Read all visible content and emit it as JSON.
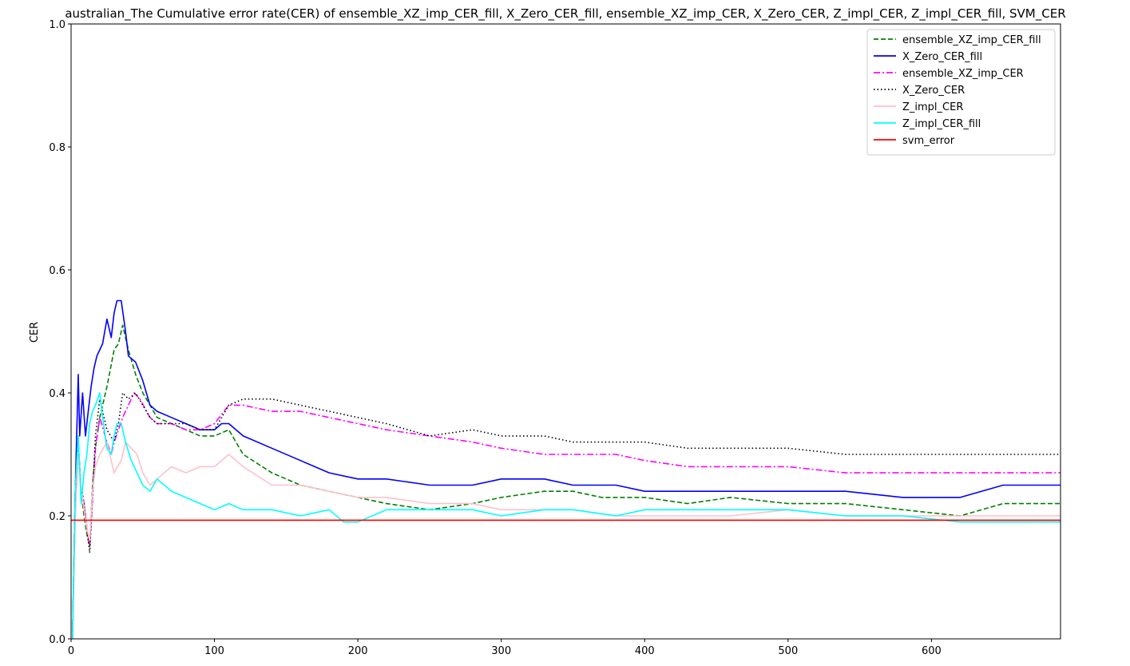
{
  "chart_data": {
    "type": "line",
    "title": "australian_The Cumulative error rate(CER) of ensemble_XZ_imp_CER_fill, X_Zero_CER_fill, ensemble_XZ_imp_CER, X_Zero_CER, Z_impl_CER, Z_impl_CER_fill, SVM_CER",
    "xlabel": "",
    "ylabel": "CER",
    "xlim": [
      0,
      690
    ],
    "ylim": [
      0,
      1.0
    ],
    "xticks": [
      0,
      100,
      200,
      300,
      400,
      500,
      600
    ],
    "yticks": [
      0.0,
      0.2,
      0.4,
      0.6,
      0.8,
      1.0
    ],
    "ytick_labels": [
      "0.0",
      "0.2",
      "0.4",
      "0.6",
      "0.8",
      "1.0"
    ],
    "grid": false,
    "legend_position": "top-right",
    "series": [
      {
        "name": "ensemble_XZ_imp_CER_fill",
        "color": "#008000",
        "dash": "dashed",
        "x": [
          1,
          3,
          5,
          7,
          9,
          11,
          13,
          15,
          17,
          20,
          25,
          30,
          33,
          36,
          40,
          45,
          50,
          55,
          60,
          70,
          80,
          90,
          100,
          110,
          120,
          140,
          160,
          180,
          200,
          220,
          250,
          280,
          300,
          330,
          350,
          370,
          400,
          430,
          460,
          500,
          540,
          580,
          620,
          650,
          690
        ],
        "y": [
          0.0,
          0.25,
          0.32,
          0.24,
          0.2,
          0.17,
          0.15,
          0.25,
          0.31,
          0.36,
          0.41,
          0.47,
          0.48,
          0.51,
          0.47,
          0.43,
          0.4,
          0.38,
          0.36,
          0.35,
          0.34,
          0.33,
          0.33,
          0.34,
          0.3,
          0.27,
          0.25,
          0.24,
          0.23,
          0.22,
          0.21,
          0.22,
          0.23,
          0.24,
          0.24,
          0.23,
          0.23,
          0.22,
          0.23,
          0.22,
          0.22,
          0.21,
          0.2,
          0.22,
          0.22
        ]
      },
      {
        "name": "X_Zero_CER_fill",
        "color": "#0000ff",
        "dash": "solid",
        "x": [
          1,
          3,
          5,
          6,
          8,
          10,
          12,
          14,
          16,
          18,
          20,
          22,
          25,
          28,
          30,
          32,
          35,
          38,
          40,
          45,
          50,
          55,
          60,
          70,
          80,
          90,
          100,
          105,
          110,
          120,
          140,
          160,
          180,
          200,
          220,
          250,
          280,
          300,
          330,
          350,
          380,
          400,
          430,
          460,
          500,
          540,
          580,
          620,
          650,
          690
        ],
        "y": [
          0.0,
          0.25,
          0.43,
          0.33,
          0.4,
          0.33,
          0.37,
          0.41,
          0.44,
          0.46,
          0.47,
          0.48,
          0.52,
          0.49,
          0.53,
          0.55,
          0.55,
          0.5,
          0.46,
          0.45,
          0.42,
          0.38,
          0.37,
          0.36,
          0.35,
          0.34,
          0.34,
          0.35,
          0.35,
          0.33,
          0.31,
          0.29,
          0.27,
          0.26,
          0.26,
          0.25,
          0.25,
          0.26,
          0.26,
          0.25,
          0.25,
          0.24,
          0.24,
          0.24,
          0.24,
          0.24,
          0.23,
          0.23,
          0.25,
          0.25
        ]
      },
      {
        "name": "ensemble_XZ_imp_CER",
        "color": "#ff00ff",
        "dash": "dashdot",
        "x": [
          1,
          3,
          5,
          7,
          9,
          11,
          13,
          15,
          17,
          20,
          25,
          28,
          30,
          33,
          36,
          40,
          44,
          48,
          55,
          60,
          70,
          80,
          90,
          100,
          110,
          120,
          140,
          160,
          180,
          200,
          220,
          250,
          280,
          300,
          330,
          350,
          380,
          400,
          430,
          460,
          500,
          540,
          580,
          620,
          650,
          690
        ],
        "y": [
          0.0,
          0.25,
          0.3,
          0.25,
          0.22,
          0.18,
          0.15,
          0.23,
          0.31,
          0.36,
          0.32,
          0.3,
          0.32,
          0.34,
          0.36,
          0.38,
          0.4,
          0.39,
          0.36,
          0.35,
          0.35,
          0.34,
          0.34,
          0.35,
          0.38,
          0.38,
          0.37,
          0.37,
          0.36,
          0.35,
          0.34,
          0.33,
          0.32,
          0.31,
          0.3,
          0.3,
          0.3,
          0.29,
          0.28,
          0.28,
          0.28,
          0.27,
          0.27,
          0.27,
          0.27,
          0.27
        ]
      },
      {
        "name": "X_Zero_CER",
        "color": "#000000",
        "dash": "dotted",
        "x": [
          1,
          3,
          5,
          7,
          9,
          11,
          13,
          15,
          17,
          20,
          25,
          30,
          33,
          36,
          40,
          45,
          50,
          55,
          60,
          70,
          80,
          90,
          100,
          110,
          120,
          140,
          160,
          180,
          200,
          220,
          250,
          280,
          300,
          330,
          350,
          380,
          400,
          430,
          460,
          500,
          540,
          580,
          620,
          650,
          690
        ],
        "y": [
          0.0,
          0.25,
          0.3,
          0.25,
          0.22,
          0.18,
          0.14,
          0.23,
          0.33,
          0.39,
          0.34,
          0.32,
          0.35,
          0.4,
          0.39,
          0.4,
          0.38,
          0.36,
          0.35,
          0.35,
          0.35,
          0.34,
          0.34,
          0.38,
          0.39,
          0.39,
          0.38,
          0.37,
          0.36,
          0.35,
          0.33,
          0.34,
          0.33,
          0.33,
          0.32,
          0.32,
          0.32,
          0.31,
          0.31,
          0.31,
          0.3,
          0.3,
          0.3,
          0.3,
          0.3
        ]
      },
      {
        "name": "Z_impl_CER",
        "color": "#ffc0cb",
        "dash": "solid",
        "x": [
          1,
          3,
          5,
          7,
          9,
          11,
          13,
          15,
          17,
          20,
          25,
          28,
          30,
          35,
          38,
          42,
          46,
          50,
          55,
          60,
          70,
          80,
          90,
          100,
          110,
          120,
          140,
          160,
          180,
          200,
          220,
          250,
          280,
          300,
          330,
          350,
          380,
          400,
          430,
          460,
          500,
          540,
          580,
          620,
          650,
          690
        ],
        "y": [
          0.0,
          0.2,
          0.3,
          0.25,
          0.21,
          0.18,
          0.16,
          0.24,
          0.28,
          0.3,
          0.32,
          0.29,
          0.27,
          0.29,
          0.32,
          0.31,
          0.3,
          0.27,
          0.25,
          0.26,
          0.28,
          0.27,
          0.28,
          0.28,
          0.3,
          0.28,
          0.25,
          0.25,
          0.24,
          0.23,
          0.23,
          0.22,
          0.22,
          0.21,
          0.21,
          0.21,
          0.2,
          0.2,
          0.2,
          0.2,
          0.21,
          0.2,
          0.2,
          0.2,
          0.2,
          0.2
        ]
      },
      {
        "name": "Z_impl_CER_fill",
        "color": "#00ffff",
        "dash": "solid",
        "x": [
          1,
          3,
          5,
          7,
          9,
          11,
          13,
          15,
          17,
          20,
          22,
          25,
          28,
          30,
          32,
          35,
          38,
          42,
          46,
          50,
          55,
          60,
          70,
          80,
          90,
          100,
          110,
          120,
          140,
          160,
          180,
          190,
          200,
          220,
          250,
          280,
          300,
          330,
          350,
          380,
          400,
          430,
          460,
          500,
          540,
          580,
          620,
          650,
          690
        ],
        "y": [
          0.0,
          0.25,
          0.33,
          0.22,
          0.27,
          0.3,
          0.35,
          0.37,
          0.38,
          0.4,
          0.36,
          0.31,
          0.3,
          0.33,
          0.35,
          0.35,
          0.32,
          0.29,
          0.27,
          0.25,
          0.24,
          0.26,
          0.24,
          0.23,
          0.22,
          0.21,
          0.22,
          0.21,
          0.21,
          0.2,
          0.21,
          0.19,
          0.19,
          0.21,
          0.21,
          0.21,
          0.2,
          0.21,
          0.21,
          0.2,
          0.21,
          0.21,
          0.21,
          0.21,
          0.2,
          0.2,
          0.19,
          0.19,
          0.19
        ]
      },
      {
        "name": "svm_error",
        "color": "#ff0000",
        "dash": "solid",
        "x": [
          0,
          690
        ],
        "y": [
          0.193,
          0.193
        ]
      }
    ]
  }
}
